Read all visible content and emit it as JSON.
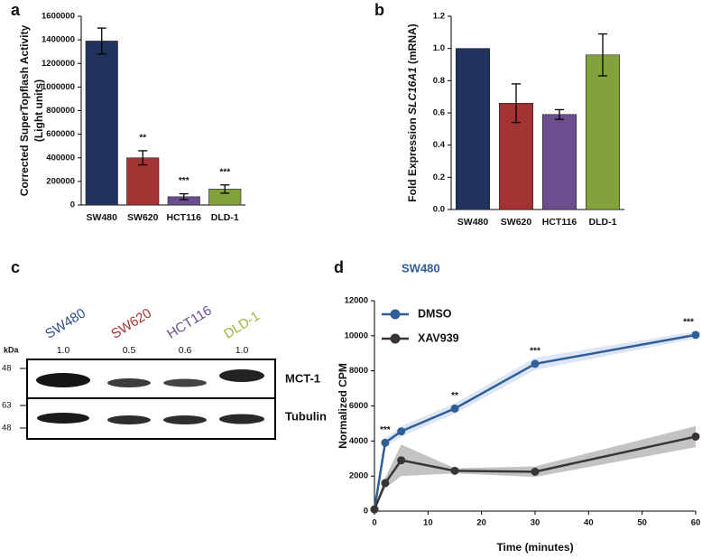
{
  "chart_data": [
    {
      "panel": "a",
      "type": "bar",
      "ylabel": [
        "Corrected SuperTopflash Activity",
        "(Light units)"
      ],
      "categories": [
        "SW480",
        "SW620",
        "HCT116",
        "DLD-1"
      ],
      "colors": [
        "#22325e",
        "#a43434",
        "#6c4d8e",
        "#82a33c"
      ],
      "values": [
        1390000,
        400000,
        70000,
        135000
      ],
      "errors": [
        110000,
        60000,
        25000,
        35000
      ],
      "significance": [
        null,
        "**",
        "***",
        "***"
      ],
      "ylim": [
        0,
        1600000
      ],
      "yticks": [
        0,
        200000,
        400000,
        600000,
        800000,
        1000000,
        1200000,
        1400000,
        1600000
      ]
    },
    {
      "panel": "b",
      "type": "bar",
      "ylabel": [
        "Fold Expression ",
        "SLC16A1",
        " (mRNA)"
      ],
      "categories": [
        "SW480",
        "SW620",
        "HCT116",
        "DLD-1"
      ],
      "colors": [
        "#22325e",
        "#a43434",
        "#6c4d8e",
        "#82a33c"
      ],
      "values": [
        1.0,
        0.66,
        0.59,
        0.96
      ],
      "errors": [
        0,
        0.12,
        0.03,
        0.13
      ],
      "ylim": [
        0,
        1.2
      ],
      "yticks": [
        {
          "value": 0,
          "label": "0.0"
        },
        0.2,
        0.4,
        0.6,
        0.8,
        {
          "value": 1,
          "label": "1.0"
        },
        1.2
      ]
    },
    {
      "panel": "d",
      "type": "line",
      "title": "SW480",
      "xlabel": "Time (minutes)",
      "ylabel": "Normalized CPM",
      "x": [
        0,
        2,
        5,
        15,
        30,
        60
      ],
      "series": [
        {
          "name": "DMSO",
          "color": "#2f5f98",
          "band_color": "#c8d5f0",
          "values": [
            100,
            3900,
            4550,
            5850,
            8400,
            10050
          ],
          "errors": [
            50,
            250,
            300,
            300,
            350,
            200
          ]
        },
        {
          "name": "XAV939",
          "color": "#3a3535",
          "band_color": "#9b9b9b",
          "values": [
            100,
            1600,
            2900,
            2300,
            2250,
            4250
          ],
          "errors": [
            50,
            300,
            900,
            150,
            300,
            600
          ]
        }
      ],
      "significance": [
        null,
        "***",
        null,
        "**",
        "***",
        "***"
      ],
      "xlim": [
        0,
        60
      ],
      "xticks": [
        0,
        10,
        20,
        30,
        40,
        50,
        60
      ],
      "ylim": [
        0,
        12000
      ],
      "yticks": [
        0,
        2000,
        4000,
        6000,
        8000,
        10000,
        12000
      ],
      "legend": "upper left"
    }
  ],
  "blot": {
    "panel": "c",
    "lanes": [
      {
        "name": "SW480",
        "color": "#2e4f86",
        "quant": "1.0"
      },
      {
        "name": "SW620",
        "color": "#a43434",
        "quant": "0.5"
      },
      {
        "name": "HCT116",
        "color": "#6c4d8e",
        "quant": "0.6"
      },
      {
        "name": "DLD-1",
        "color": "#9ab83c",
        "quant": "1.0"
      }
    ],
    "unit": "kDa",
    "markers": [
      "48",
      "63",
      "48"
    ],
    "bands": [
      "MCT-1",
      "Tubulin"
    ]
  }
}
